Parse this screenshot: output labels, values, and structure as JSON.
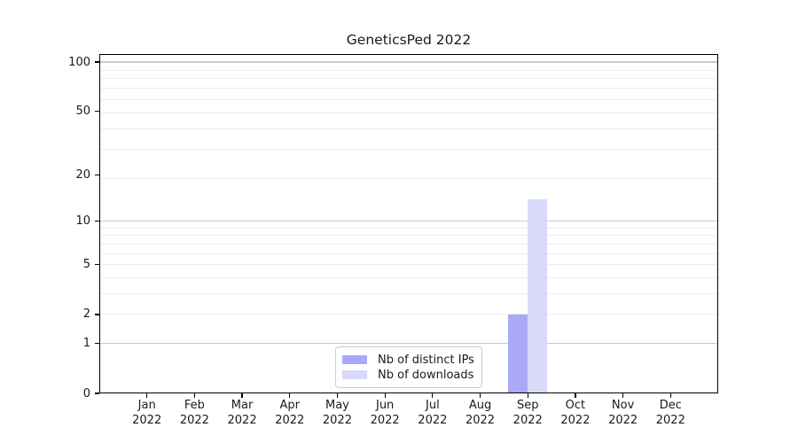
{
  "chart_data": {
    "type": "bar",
    "title": "GeneticsPed 2022",
    "months": [
      "Jan",
      "Feb",
      "Mar",
      "Apr",
      "May",
      "Jun",
      "Jul",
      "Aug",
      "Sep",
      "Oct",
      "Nov",
      "Dec"
    ],
    "year_label": "2022",
    "series": [
      {
        "name": "Nb of distinct IPs",
        "color": "#a9a9f6",
        "values": [
          0,
          0,
          0,
          0,
          0,
          0,
          0,
          0,
          2,
          0,
          0,
          0
        ]
      },
      {
        "name": "Nb of downloads",
        "color": "#d9d9fa",
        "values": [
          0,
          0,
          0,
          0,
          0,
          0,
          0,
          0,
          14,
          0,
          0,
          0
        ]
      }
    ],
    "yscale": "log10(value+1)",
    "yticks": [
      0,
      1,
      2,
      5,
      10,
      20,
      50,
      100
    ],
    "ylim": [
      0,
      112
    ],
    "grid": {
      "major_values": [
        1,
        10,
        100
      ],
      "minor_value_plus1": [
        3,
        4,
        5,
        6,
        7,
        8,
        9,
        10,
        20,
        30,
        40,
        50,
        60,
        70,
        80,
        90
      ]
    },
    "legend_position": "bottom-center"
  },
  "style": {
    "bar_ips_color": "#a9a9f6",
    "bar_downloads_color": "#d9d9fa",
    "grid_major_color": "#c9c9c9",
    "grid_minor_color": "#ececec",
    "axis_color": "#000000",
    "text_color": "#1a1a1a",
    "legend_border_color": "#cccccc",
    "background_color": "#ffffff"
  }
}
